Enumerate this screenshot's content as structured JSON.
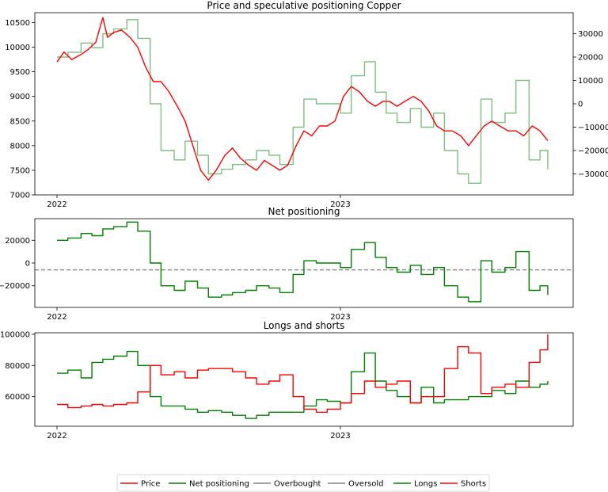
{
  "legend": [
    {
      "label": "Price",
      "color": "#ff0000"
    },
    {
      "label": "Net positioning",
      "color": "#008000"
    },
    {
      "label": "Overbought",
      "color": "#808080"
    },
    {
      "label": "Oversold",
      "color": "#808080"
    },
    {
      "label": "Longs",
      "color": "#008000"
    },
    {
      "label": "Shorts",
      "color": "#ff0000"
    }
  ],
  "chart_data": [
    {
      "type": "line",
      "title": "Price and speculative positioning Copper",
      "x_ticks": [
        "2022",
        "2023"
      ],
      "y_ticks": [
        "7000",
        "7500",
        "8000",
        "8500",
        "9000",
        "9500",
        "10000",
        "10500"
      ],
      "y_ticks_right": [
        "−30000",
        "−20000",
        "−10000",
        "0",
        "10000",
        "20000",
        "30000"
      ],
      "ylim": [
        7000,
        10700
      ],
      "ylim_right": [
        -39000,
        39000
      ],
      "grid": false,
      "series": [
        {
          "name": "Price",
          "color": "#ff0000",
          "axis": "left",
          "x": [
            "2022-01-01",
            "2022-01-10",
            "2022-01-20",
            "2022-02-01",
            "2022-02-10",
            "2022-02-20",
            "2022-03-01",
            "2022-03-07",
            "2022-03-15",
            "2022-03-25",
            "2022-04-05",
            "2022-04-15",
            "2022-04-25",
            "2022-05-05",
            "2022-05-15",
            "2022-05-25",
            "2022-06-05",
            "2022-06-15",
            "2022-06-25",
            "2022-07-05",
            "2022-07-15",
            "2022-07-25",
            "2022-08-05",
            "2022-08-15",
            "2022-08-25",
            "2022-09-05",
            "2022-09-15",
            "2022-09-25",
            "2022-10-05",
            "2022-10-15",
            "2022-10-25",
            "2022-11-05",
            "2022-11-15",
            "2022-11-25",
            "2022-12-05",
            "2022-12-15",
            "2022-12-25",
            "2023-01-05",
            "2023-01-15",
            "2023-01-25",
            "2023-02-05",
            "2023-02-15",
            "2023-02-25",
            "2023-03-05",
            "2023-03-15",
            "2023-03-25",
            "2023-04-05",
            "2023-04-15",
            "2023-04-25",
            "2023-05-05",
            "2023-05-15",
            "2023-05-25",
            "2023-06-05",
            "2023-06-15",
            "2023-06-25",
            "2023-07-05",
            "2023-07-15",
            "2023-07-25",
            "2023-08-05",
            "2023-08-15",
            "2023-08-25",
            "2023-09-05",
            "2023-09-15",
            "2023-09-25"
          ],
          "values": [
            9700,
            9900,
            9750,
            9850,
            9950,
            10100,
            10600,
            10200,
            10300,
            10350,
            10200,
            10000,
            9600,
            9300,
            9300,
            9100,
            8800,
            8500,
            8000,
            7500,
            7300,
            7500,
            7800,
            7950,
            7750,
            7600,
            7500,
            7700,
            7600,
            7500,
            7600,
            8000,
            8300,
            8200,
            8400,
            8400,
            8500,
            9000,
            9200,
            9100,
            8900,
            8800,
            8900,
            8900,
            8800,
            8900,
            9000,
            8900,
            8700,
            8400,
            8300,
            8300,
            8200,
            8000,
            8200,
            8400,
            8500,
            8400,
            8300,
            8300,
            8200,
            8400,
            8300,
            8100
          ]
        },
        {
          "name": "Net positioning",
          "color": "#7fbf7f",
          "axis": "right",
          "x": [
            "2022-01-01",
            "2022-01-15",
            "2022-02-01",
            "2022-02-15",
            "2022-03-01",
            "2022-03-15",
            "2022-04-01",
            "2022-04-15",
            "2022-05-01",
            "2022-05-15",
            "2022-06-01",
            "2022-06-15",
            "2022-07-01",
            "2022-07-15",
            "2022-08-01",
            "2022-08-15",
            "2022-09-01",
            "2022-09-15",
            "2022-10-01",
            "2022-10-15",
            "2022-11-01",
            "2022-11-15",
            "2022-12-01",
            "2022-12-15",
            "2023-01-01",
            "2023-01-15",
            "2023-02-01",
            "2023-02-15",
            "2023-03-01",
            "2023-03-15",
            "2023-04-01",
            "2023-04-15",
            "2023-05-01",
            "2023-05-15",
            "2023-06-01",
            "2023-06-15",
            "2023-07-01",
            "2023-07-15",
            "2023-08-01",
            "2023-08-15",
            "2023-09-01",
            "2023-09-15",
            "2023-09-25"
          ],
          "values": [
            20000,
            22000,
            26000,
            24000,
            30000,
            32000,
            36000,
            28000,
            0,
            -20000,
            -24000,
            -16000,
            -22000,
            -30000,
            -28000,
            -26000,
            -24000,
            -20000,
            -22000,
            -26000,
            -10000,
            2000,
            0,
            0,
            -4000,
            12000,
            18000,
            5000,
            -4000,
            -8000,
            -2000,
            -10000,
            -4000,
            -20000,
            -30000,
            -34000,
            2000,
            -8000,
            -4000,
            10000,
            -24000,
            -20000,
            -28000
          ]
        }
      ]
    },
    {
      "type": "line",
      "title": "Net positioning",
      "x_ticks": [
        "2022",
        "2023"
      ],
      "y_ticks": [
        "−20000",
        "0",
        "20000"
      ],
      "ylim": [
        -39000,
        39000
      ],
      "grid": false,
      "reference_line": -6000,
      "series": [
        {
          "name": "Net positioning",
          "color": "#008000",
          "x": [
            "2022-01-01",
            "2022-01-15",
            "2022-02-01",
            "2022-02-15",
            "2022-03-01",
            "2022-03-15",
            "2022-04-01",
            "2022-04-15",
            "2022-05-01",
            "2022-05-15",
            "2022-06-01",
            "2022-06-15",
            "2022-07-01",
            "2022-07-15",
            "2022-08-01",
            "2022-08-15",
            "2022-09-01",
            "2022-09-15",
            "2022-10-01",
            "2022-10-15",
            "2022-11-01",
            "2022-11-15",
            "2022-12-01",
            "2022-12-15",
            "2023-01-01",
            "2023-01-15",
            "2023-02-01",
            "2023-02-15",
            "2023-03-01",
            "2023-03-15",
            "2023-04-01",
            "2023-04-15",
            "2023-05-01",
            "2023-05-15",
            "2023-06-01",
            "2023-06-15",
            "2023-07-01",
            "2023-07-15",
            "2023-08-01",
            "2023-08-15",
            "2023-09-01",
            "2023-09-15",
            "2023-09-25"
          ],
          "values": [
            20000,
            22000,
            26000,
            24000,
            30000,
            32000,
            36000,
            28000,
            0,
            -20000,
            -24000,
            -16000,
            -22000,
            -30000,
            -28000,
            -26000,
            -24000,
            -20000,
            -22000,
            -26000,
            -10000,
            2000,
            0,
            0,
            -4000,
            12000,
            18000,
            5000,
            -4000,
            -8000,
            -2000,
            -10000,
            -4000,
            -20000,
            -30000,
            -34000,
            2000,
            -8000,
            -4000,
            10000,
            -24000,
            -20000,
            -28000
          ]
        }
      ]
    },
    {
      "type": "line",
      "title": "Longs and shorts",
      "x_ticks": [
        "2022",
        "2023"
      ],
      "y_ticks": [
        "60000",
        "80000",
        "100000"
      ],
      "ylim": [
        41000,
        101000
      ],
      "grid": false,
      "series": [
        {
          "name": "Longs",
          "color": "#008000",
          "x": [
            "2022-01-01",
            "2022-01-15",
            "2022-02-01",
            "2022-02-15",
            "2022-03-01",
            "2022-03-15",
            "2022-04-01",
            "2022-04-15",
            "2022-05-01",
            "2022-05-15",
            "2022-06-01",
            "2022-06-15",
            "2022-07-01",
            "2022-07-15",
            "2022-08-01",
            "2022-08-15",
            "2022-09-01",
            "2022-09-15",
            "2022-10-01",
            "2022-10-15",
            "2022-11-01",
            "2022-11-15",
            "2022-12-01",
            "2022-12-15",
            "2023-01-01",
            "2023-01-15",
            "2023-02-01",
            "2023-02-15",
            "2023-03-01",
            "2023-03-15",
            "2023-04-01",
            "2023-04-15",
            "2023-05-01",
            "2023-05-15",
            "2023-06-01",
            "2023-06-15",
            "2023-07-01",
            "2023-07-15",
            "2023-08-01",
            "2023-08-15",
            "2023-09-01",
            "2023-09-15",
            "2023-09-25"
          ],
          "values": [
            75000,
            77000,
            72000,
            82000,
            84000,
            86000,
            89000,
            80000,
            60000,
            54000,
            54000,
            52000,
            50000,
            51000,
            50000,
            48000,
            46000,
            48000,
            50000,
            50000,
            50000,
            54000,
            58000,
            57000,
            56000,
            76000,
            88000,
            70000,
            64000,
            60000,
            56000,
            66000,
            56000,
            58000,
            58000,
            60000,
            60000,
            64000,
            62000,
            70000,
            66000,
            68000,
            70000
          ]
        },
        {
          "name": "Shorts",
          "color": "#ff0000",
          "x": [
            "2022-01-01",
            "2022-01-15",
            "2022-02-01",
            "2022-02-15",
            "2022-03-01",
            "2022-03-15",
            "2022-04-01",
            "2022-04-15",
            "2022-05-01",
            "2022-05-15",
            "2022-06-01",
            "2022-06-15",
            "2022-07-01",
            "2022-07-15",
            "2022-08-01",
            "2022-08-15",
            "2022-09-01",
            "2022-09-15",
            "2022-10-01",
            "2022-10-15",
            "2022-11-01",
            "2022-11-15",
            "2022-12-01",
            "2022-12-15",
            "2023-01-01",
            "2023-01-15",
            "2023-02-01",
            "2023-02-15",
            "2023-03-01",
            "2023-03-15",
            "2023-04-01",
            "2023-04-15",
            "2023-05-01",
            "2023-05-15",
            "2023-06-01",
            "2023-06-15",
            "2023-07-01",
            "2023-07-15",
            "2023-08-01",
            "2023-08-15",
            "2023-09-01",
            "2023-09-15",
            "2023-09-25"
          ],
          "values": [
            55000,
            53000,
            54000,
            55000,
            54000,
            55000,
            56000,
            63000,
            80000,
            74000,
            76000,
            72000,
            77000,
            78000,
            78000,
            76000,
            72000,
            68000,
            70000,
            74000,
            60000,
            52000,
            50000,
            52000,
            56000,
            62000,
            70000,
            66000,
            68000,
            70000,
            56000,
            60000,
            60000,
            78000,
            92000,
            88000,
            62000,
            66000,
            68000,
            66000,
            82000,
            90000,
            100000
          ]
        }
      ]
    }
  ]
}
